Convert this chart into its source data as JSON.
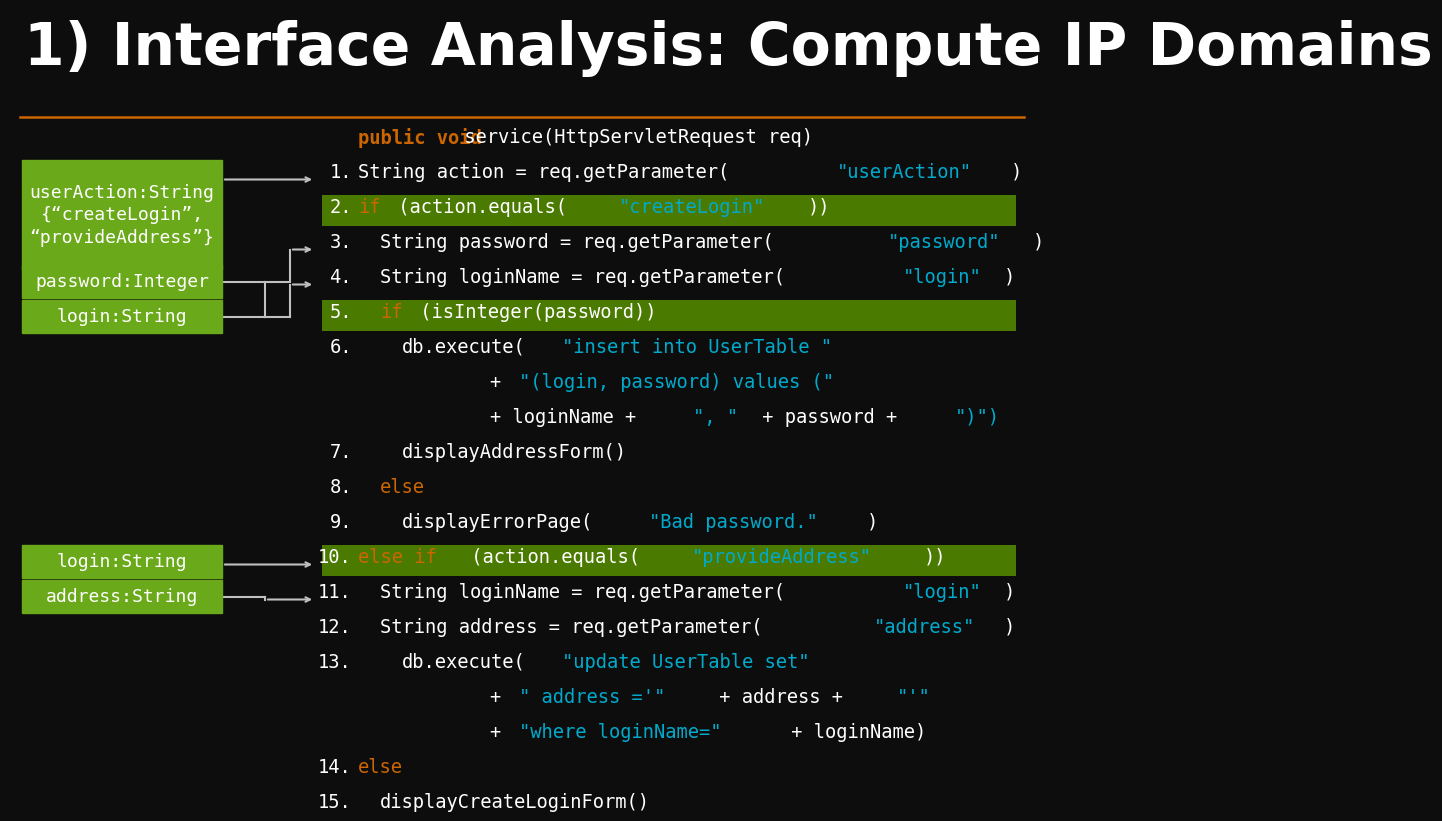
{
  "title": "1) Interface Analysis: Compute IP Domains",
  "bg_color": "#0d0d0d",
  "title_color": "#ffffff",
  "title_fontsize": 42,
  "separator_color": "#cc6600",
  "green_box_color": "#6aaa1a",
  "green_box_text_color": "#ffffff",
  "highlight_color": "#4a7a00",
  "white": "#ffffff",
  "orange": "#cc6600",
  "cyan": "#00aacc",
  "arrow_color": "#c0c0c0",
  "boxes_group1": [
    {
      "label": "userAction:String\n{“createLogin”,\n“provideAddress”}",
      "multiline": true
    },
    {
      "label": "password:Integer",
      "multiline": false
    },
    {
      "label": "login:String",
      "multiline": false
    }
  ],
  "boxes_group2": [
    {
      "label": "login:String",
      "multiline": false
    },
    {
      "label": "address:String",
      "multiline": false
    }
  ]
}
